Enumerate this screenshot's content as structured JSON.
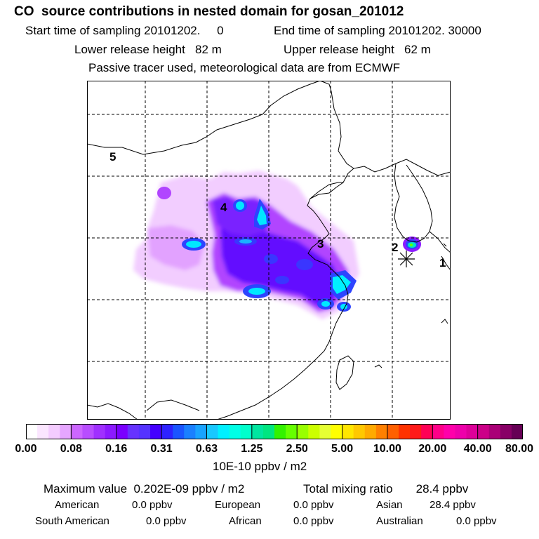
{
  "header": {
    "title": "CO  source contributions in nested domain for gosan_201012",
    "start_label": "Start time of sampling 20101202.     0",
    "end_label": "End time of sampling 20101202. 30000",
    "lower_label": "Lower release height   82 m",
    "upper_label": "Upper release height   62 m",
    "note": "Passive tracer used, meteorological data are from ECMWF"
  },
  "map": {
    "markers": [
      {
        "id": "1",
        "label": "1"
      },
      {
        "id": "2",
        "label": "2"
      },
      {
        "id": "3",
        "label": "3"
      },
      {
        "id": "4",
        "label": "4"
      },
      {
        "id": "5",
        "label": "5"
      }
    ],
    "receptor_symbol": "asterisk"
  },
  "colorbar": {
    "colors": [
      "#ffffff",
      "#fbe6ff",
      "#f4ccff",
      "#e6a6ff",
      "#cc66ff",
      "#b84dff",
      "#a030ff",
      "#8c1aff",
      "#7a00ff",
      "#6633ff",
      "#5533ff",
      "#4400ff",
      "#2d22ff",
      "#1a55ff",
      "#1a80ff",
      "#19a3ff",
      "#19c8ff",
      "#00f0ff",
      "#00ffe6",
      "#00ffcc",
      "#00e6a0",
      "#00e680",
      "#33f200",
      "#66ff00",
      "#99ff00",
      "#ccff00",
      "#e6ff33",
      "#ffff00",
      "#ffe600",
      "#ffc800",
      "#ffaa00",
      "#ff8000",
      "#ff6000",
      "#ff3300",
      "#ff1a1a",
      "#ff0055",
      "#ff0088",
      "#ff00aa",
      "#ee00aa",
      "#dd0099",
      "#cc0088",
      "#aa0077",
      "#880066",
      "#660055"
    ],
    "tick_labels": [
      "0.00",
      "0.08",
      "0.16",
      "0.31",
      "0.63",
      "1.25",
      "2.50",
      "5.00",
      "10.00",
      "20.00",
      "40.00",
      "80.00"
    ],
    "unit": "10E-10 ppbv / m2"
  },
  "footer": {
    "max_label": "Maximum value  0.202E-09 ppbv / m2",
    "total_label": "Total mixing ratio       28.4 ppbv",
    "sources": [
      {
        "name": "American",
        "value": "0.0 ppbv"
      },
      {
        "name": "European",
        "value": "0.0 ppbv"
      },
      {
        "name": "Asian",
        "value": "28.4 ppbv"
      },
      {
        "name": "South American",
        "value": "0.0 ppbv"
      },
      {
        "name": "African",
        "value": "0.0 ppbv"
      },
      {
        "name": "Australian",
        "value": "0.0 ppbv"
      }
    ]
  }
}
